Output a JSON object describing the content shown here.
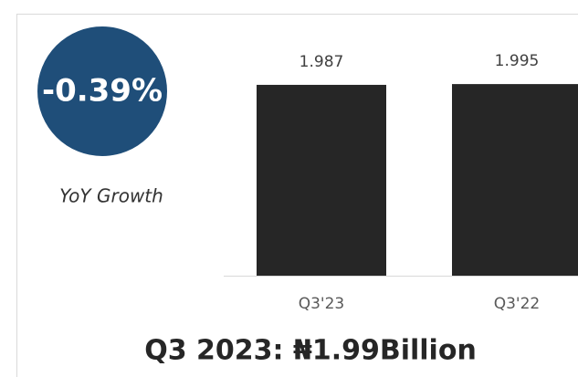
{
  "chart_data": {
    "type": "bar",
    "title": "Q3 2023: ₦1.99Billion",
    "annotations": [
      "-0.39%",
      "YoY Growth"
    ],
    "categories": [
      "Q3'23",
      "Q3'22"
    ],
    "values": [
      1.987,
      1.995
    ],
    "color": "#262626",
    "ylim": [
      0,
      2.4
    ]
  }
}
